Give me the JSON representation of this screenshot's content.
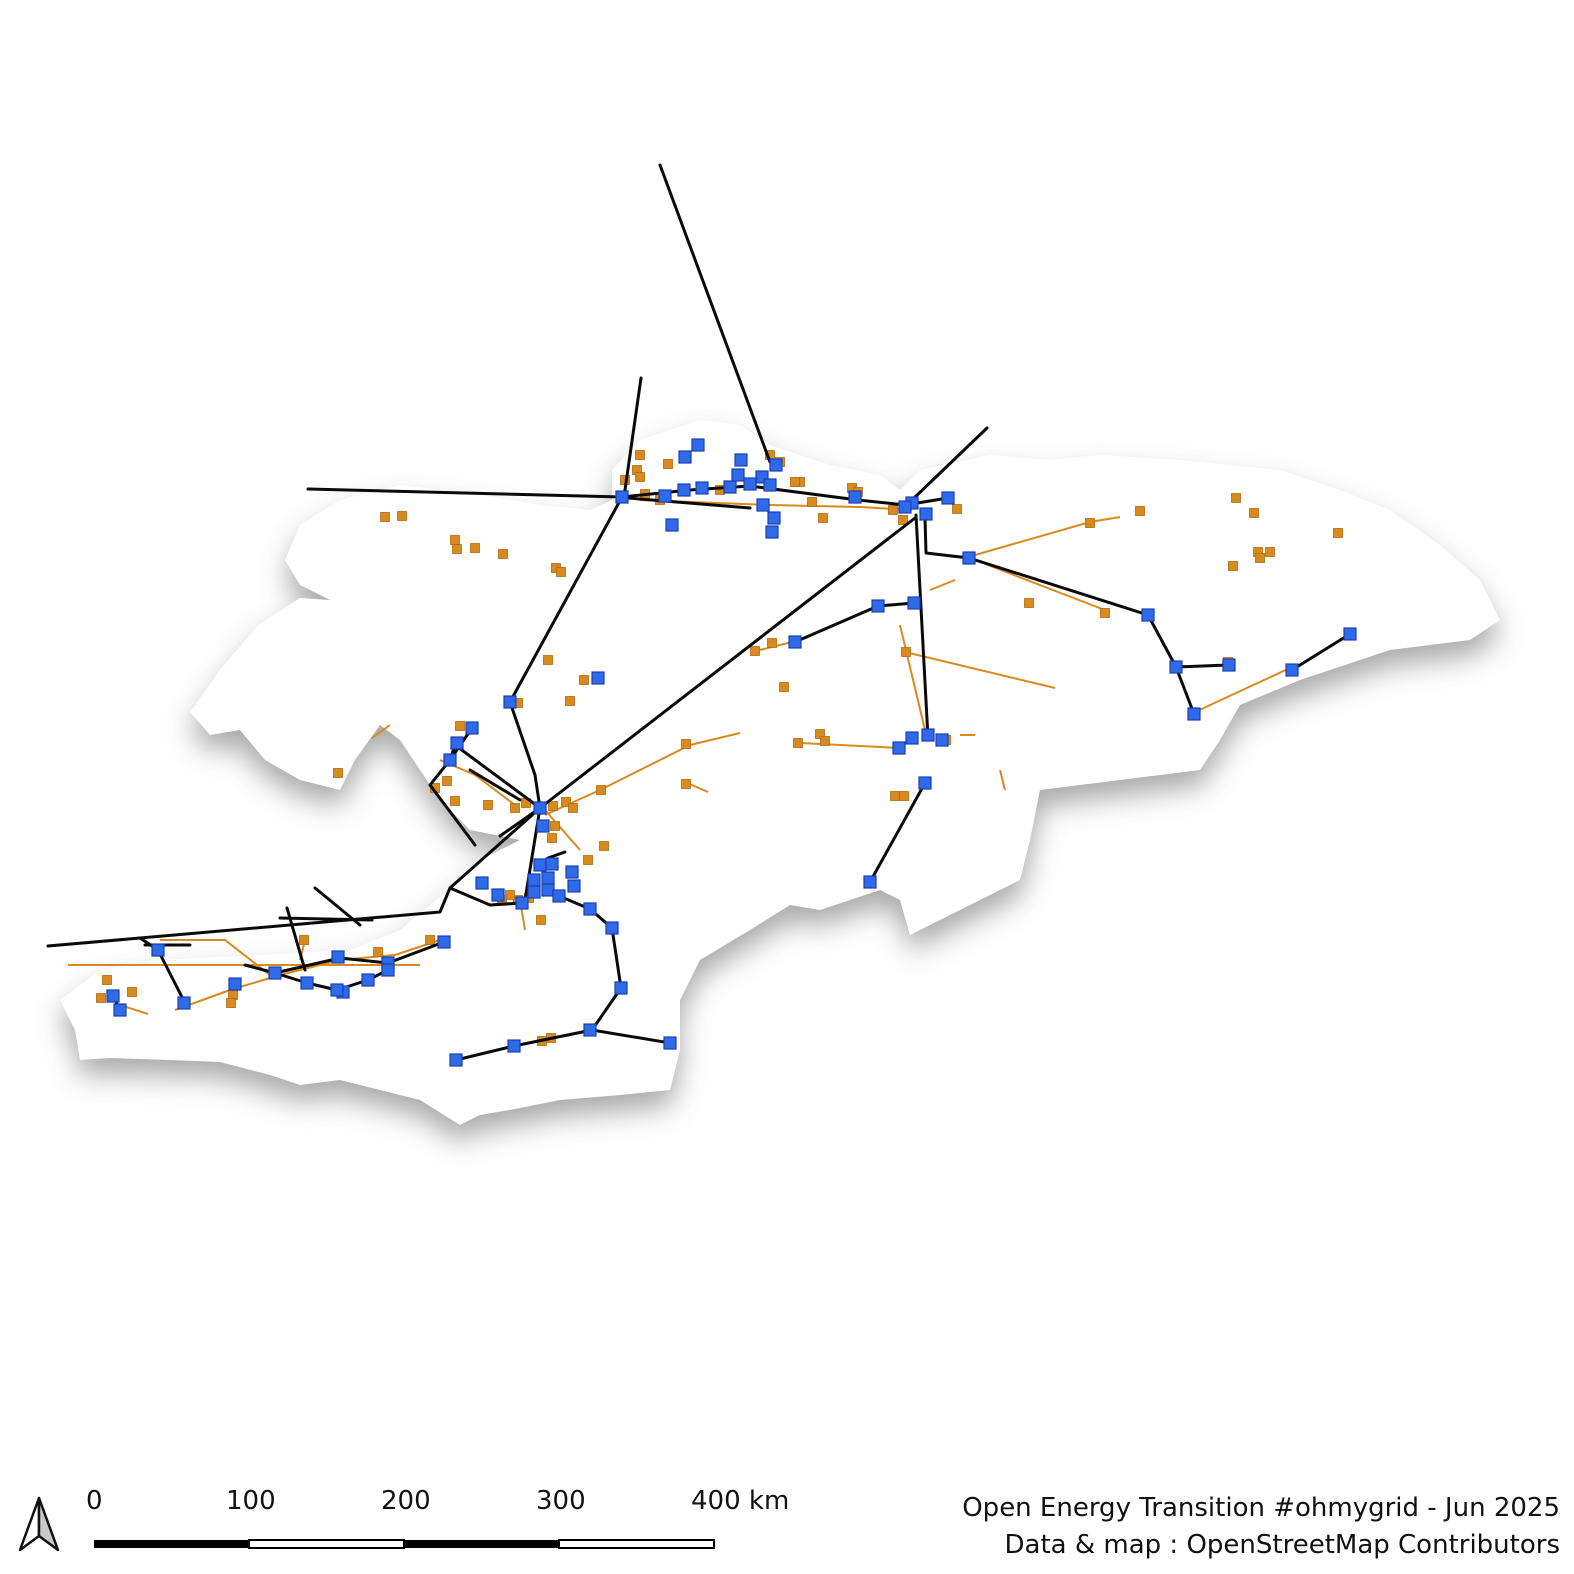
{
  "map": {
    "region": "Kyrgyzstan",
    "colors": {
      "country_fill": "#ffffff",
      "shadow": "#9a9a9a",
      "hv_line": "#0a0a0a",
      "mv_line": "#d98a1e",
      "minor_substation": "#d98a1e",
      "major_substation": "#2f6be8",
      "major_substation_stroke": "#1a3fb0"
    },
    "north_arrow_icon": "north-arrow-icon"
  },
  "scale_bar": {
    "labels": [
      "0",
      "100",
      "200",
      "300",
      "400 km"
    ]
  },
  "credits": {
    "line1": "Open Energy Transition #ohmygrid - Jun 2025",
    "line2": "Data & map : OpenStreetMap Contributors"
  }
}
